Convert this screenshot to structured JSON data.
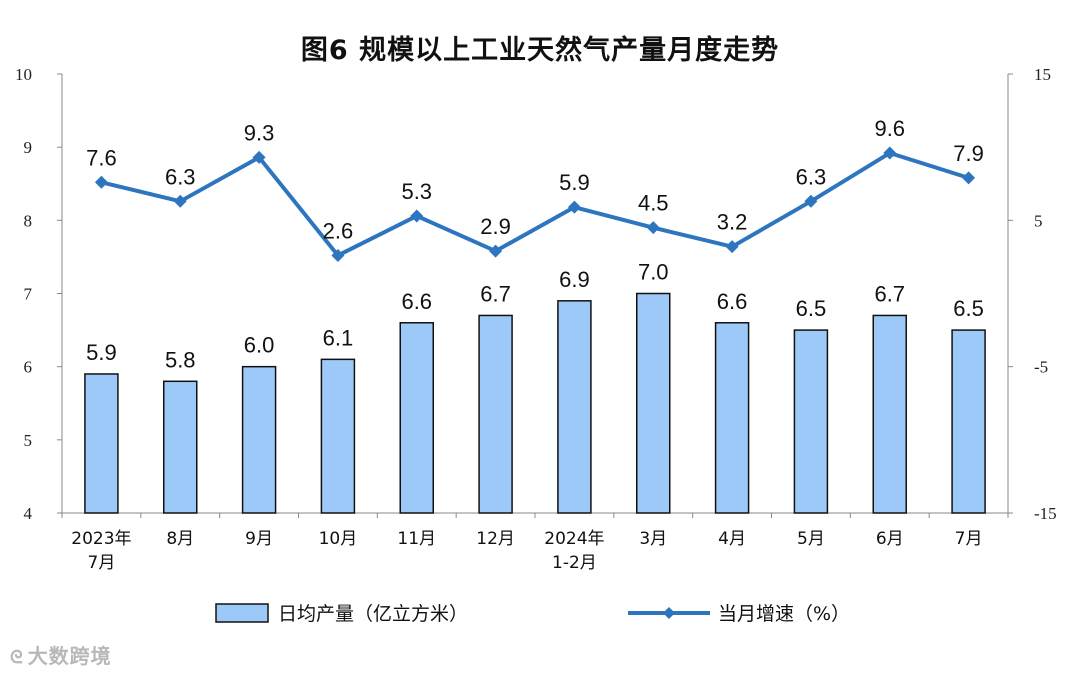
{
  "chart_data": {
    "type": "bar",
    "title": "图6  规模以上工业天然气产量月度走势",
    "categories": [
      [
        "2023年",
        "7月"
      ],
      [
        "8月"
      ],
      [
        "9月"
      ],
      [
        "10月"
      ],
      [
        "11月"
      ],
      [
        "12月"
      ],
      [
        "2024年",
        "1-2月"
      ],
      [
        "3月"
      ],
      [
        "4月"
      ],
      [
        "5月"
      ],
      [
        "6月"
      ],
      [
        "7月"
      ]
    ],
    "series": [
      {
        "name": "日均产量（亿立方米）",
        "type": "bar",
        "axis": "left",
        "values": [
          5.9,
          5.8,
          6.0,
          6.1,
          6.6,
          6.7,
          6.9,
          7.0,
          6.6,
          6.5,
          6.7,
          6.5
        ],
        "labels": [
          "5.9",
          "5.8",
          "6.0",
          "6.1",
          "6.6",
          "6.7",
          "6.9",
          "7.0",
          "6.6",
          "6.5",
          "6.7",
          "6.5"
        ],
        "color": "#9dc9f8"
      },
      {
        "name": "当月增速（%）",
        "type": "line",
        "axis": "right",
        "values": [
          7.6,
          6.3,
          9.3,
          2.6,
          5.3,
          2.9,
          5.9,
          4.5,
          3.2,
          6.3,
          9.6,
          7.9
        ],
        "labels": [
          "7.6",
          "6.3",
          "9.3",
          "2.6",
          "5.3",
          "2.9",
          "5.9",
          "4.5",
          "3.2",
          "6.3",
          "9.6",
          "7.9"
        ],
        "color": "#2e75c0"
      }
    ],
    "y_left": {
      "range": [
        4,
        10
      ],
      "ticks": [
        "4",
        "5",
        "6",
        "7",
        "8",
        "9",
        "10"
      ]
    },
    "y_right": {
      "range": [
        -15,
        15
      ],
      "ticks": [
        "-15",
        "-5",
        "5",
        "15"
      ]
    },
    "legend": "bottom",
    "grid": false
  },
  "watermark": {
    "text": "大数跨境"
  }
}
